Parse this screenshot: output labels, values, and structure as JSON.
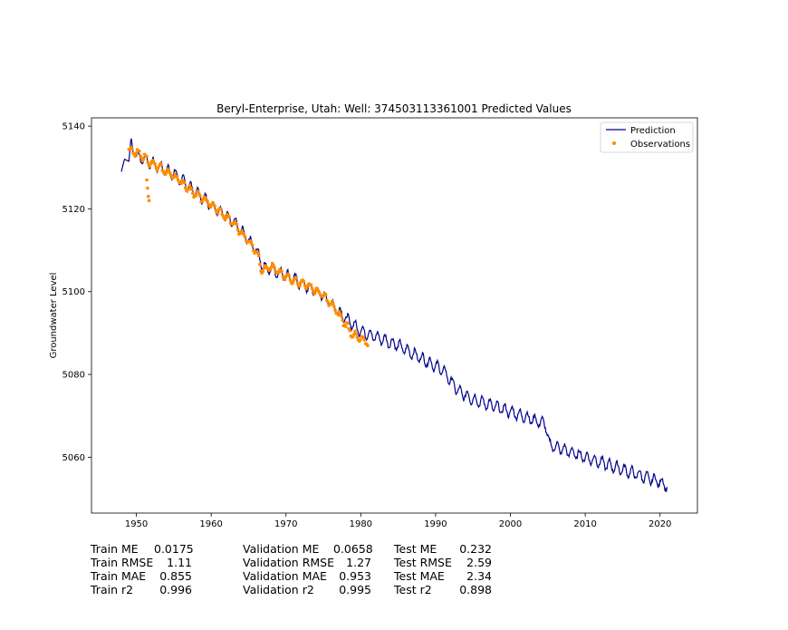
{
  "chart_data": {
    "type": "line",
    "title": "Beryl-Enterprise, Utah: Well: 374503113361001 Predicted Values",
    "xlabel": "",
    "ylabel": "Groundwater Level",
    "xlim": [
      1944,
      2025
    ],
    "ylim": [
      5046.5,
      5142
    ],
    "xticks": [
      1950,
      1960,
      1970,
      1980,
      1990,
      2000,
      2010,
      2020
    ],
    "yticks": [
      5060,
      5080,
      5100,
      5120,
      5140
    ],
    "grid": false,
    "legend_position": "top-right",
    "series": [
      {
        "name": "Prediction",
        "kind": "line",
        "color": "#00008b",
        "trend": [
          [
            1948.0,
            5129.0
          ],
          [
            1948.4,
            5132.0
          ],
          [
            1949.0,
            5131.5
          ],
          [
            1949.3,
            5137.5
          ],
          [
            1949.6,
            5133.0
          ],
          [
            1951,
            5132.0
          ],
          [
            1955,
            5128.5
          ],
          [
            1960,
            5121.0
          ],
          [
            1963,
            5117.0
          ],
          [
            1966,
            5110.0
          ],
          [
            1967,
            5106.0
          ],
          [
            1970,
            5104.0
          ],
          [
            1973,
            5101.0
          ],
          [
            1975,
            5099.0
          ],
          [
            1978,
            5093.5
          ],
          [
            1980,
            5090.5
          ],
          [
            1985,
            5087.0
          ],
          [
            1990,
            5082.0
          ],
          [
            1991,
            5081.0
          ],
          [
            1993,
            5076.0
          ],
          [
            1995,
            5074.0
          ],
          [
            2000,
            5071.0
          ],
          [
            2004.7,
            5068.0
          ],
          [
            2005.2,
            5063.0
          ],
          [
            2010,
            5060.0
          ],
          [
            2015,
            5057.0
          ],
          [
            2020,
            5054.0
          ],
          [
            2021,
            5053.0
          ]
        ]
      },
      {
        "name": "Observations",
        "kind": "scatter",
        "color": "#ff8c00",
        "trend": [
          [
            1949.0,
            5134.0
          ],
          [
            1950.0,
            5133.5
          ],
          [
            1951.0,
            5132.5
          ],
          [
            1952.0,
            5131.0
          ],
          [
            1955.0,
            5128.0
          ],
          [
            1958.0,
            5123.5
          ],
          [
            1960.0,
            5121.0
          ],
          [
            1963.0,
            5116.5
          ],
          [
            1966.0,
            5110.0
          ],
          [
            1966.7,
            5105.5
          ],
          [
            1968.0,
            5106.0
          ],
          [
            1970.0,
            5103.5
          ],
          [
            1973.0,
            5101.5
          ],
          [
            1975.0,
            5099.0
          ],
          [
            1976.5,
            5096.0
          ],
          [
            1978.0,
            5092.0
          ],
          [
            1979.0,
            5089.5
          ],
          [
            1981.0,
            5087.5
          ]
        ],
        "outliers": [
          [
            1951.4,
            5127.0
          ],
          [
            1951.5,
            5125.0
          ],
          [
            1951.6,
            5123.0
          ],
          [
            1951.7,
            5122.0
          ]
        ]
      }
    ]
  },
  "stats": [
    {
      "rows": [
        {
          "label": "Train ME",
          "value": "0.0175"
        },
        {
          "label": "Train RMSE",
          "value": "1.11"
        },
        {
          "label": "Train MAE",
          "value": "0.855"
        },
        {
          "label": "Train r2",
          "value": "0.996"
        }
      ]
    },
    {
      "rows": [
        {
          "label": "Validation ME",
          "value": "0.0658"
        },
        {
          "label": "Validation RMSE",
          "value": "1.27"
        },
        {
          "label": "Validation MAE",
          "value": "0.953"
        },
        {
          "label": "Validation r2",
          "value": "0.995"
        }
      ]
    },
    {
      "rows": [
        {
          "label": "Test ME",
          "value": "0.232"
        },
        {
          "label": "Test RMSE",
          "value": "2.59"
        },
        {
          "label": "Test MAE",
          "value": "2.34"
        },
        {
          "label": "Test r2",
          "value": "0.898"
        }
      ]
    }
  ]
}
